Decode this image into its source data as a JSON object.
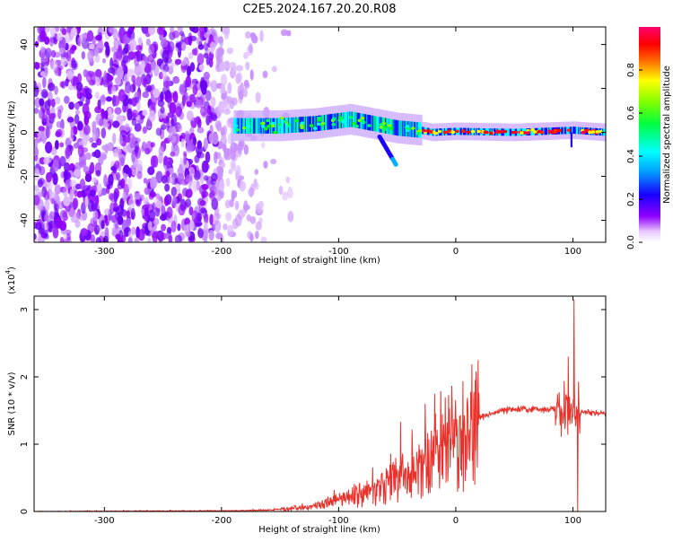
{
  "title": "C2E5.2024.167.20.20.R08",
  "chart_data": [
    {
      "type": "heatmap",
      "xlabel": "Height of straight line (km)",
      "ylabel": "Frequency (Hz)",
      "xlim": [
        -360,
        128
      ],
      "ylim": [
        -50,
        48
      ],
      "xticks": [
        -300,
        -200,
        -100,
        0,
        100
      ],
      "yticks": [
        -40,
        -20,
        0,
        20,
        40
      ],
      "colorbar": {
        "label": "Normalized spectral amplitude",
        "range": [
          0,
          1
        ],
        "ticks": [
          "0.0",
          "0.2",
          "0.4",
          "0.6",
          "0.8"
        ],
        "colors": [
          "#ffffff",
          "#8f00ff",
          "#0000ff",
          "#00ffff",
          "#00ff00",
          "#ffff00",
          "#ff0000",
          "#ff0090"
        ]
      },
      "description_features": {
        "noise_region_x": [
          -360,
          -165
        ],
        "signal_band": [
          {
            "x": -190,
            "f": 3
          },
          {
            "x": -150,
            "f": 3
          },
          {
            "x": -120,
            "f": 4
          },
          {
            "x": -90,
            "f": 6
          },
          {
            "x": -70,
            "f": 4
          },
          {
            "x": -50,
            "f": 2
          },
          {
            "x": -30,
            "f": 1
          },
          {
            "x": -20,
            "f": 0
          },
          {
            "x": 0,
            "f": 0.5
          },
          {
            "x": 50,
            "f": 0
          },
          {
            "x": 100,
            "f": 1
          },
          {
            "x": 128,
            "f": 0
          }
        ]
      }
    },
    {
      "type": "line",
      "xlabel": "Height of straight line (km)",
      "ylabel": "SNR (10 * v/v)",
      "yscale_label": "(x10",
      "yscale_exp": "4",
      "yscale_close": ")",
      "xlim": [
        -360,
        128
      ],
      "ylim": [
        0,
        3.2
      ],
      "xticks": [
        -300,
        -200,
        -100,
        0,
        100
      ],
      "yticks": [
        0,
        1,
        2,
        3
      ],
      "color": "#e8312a",
      "envelope": [
        {
          "x": -360,
          "y": 0.0
        },
        {
          "x": -200,
          "y": 0.01
        },
        {
          "x": -160,
          "y": 0.02
        },
        {
          "x": -140,
          "y": 0.05
        },
        {
          "x": -120,
          "y": 0.1
        },
        {
          "x": -100,
          "y": 0.2
        },
        {
          "x": -80,
          "y": 0.3
        },
        {
          "x": -60,
          "y": 0.45
        },
        {
          "x": -40,
          "y": 0.7
        },
        {
          "x": -20,
          "y": 0.95
        },
        {
          "x": 0,
          "y": 1.2
        },
        {
          "x": 20,
          "y": 1.4
        },
        {
          "x": 40,
          "y": 1.5
        },
        {
          "x": 60,
          "y": 1.52
        },
        {
          "x": 80,
          "y": 1.52
        },
        {
          "x": 95,
          "y": 1.5
        },
        {
          "x": 105,
          "y": 1.48
        },
        {
          "x": 128,
          "y": 1.45
        }
      ],
      "spikes": [
        {
          "x": -18,
          "y": 1.75
        },
        {
          "x": -26,
          "y": 1.6
        },
        {
          "x": 96,
          "y": 2.3
        },
        {
          "x": 101,
          "y": 3.15
        },
        {
          "x": 104,
          "y": 0.0
        }
      ]
    }
  ]
}
